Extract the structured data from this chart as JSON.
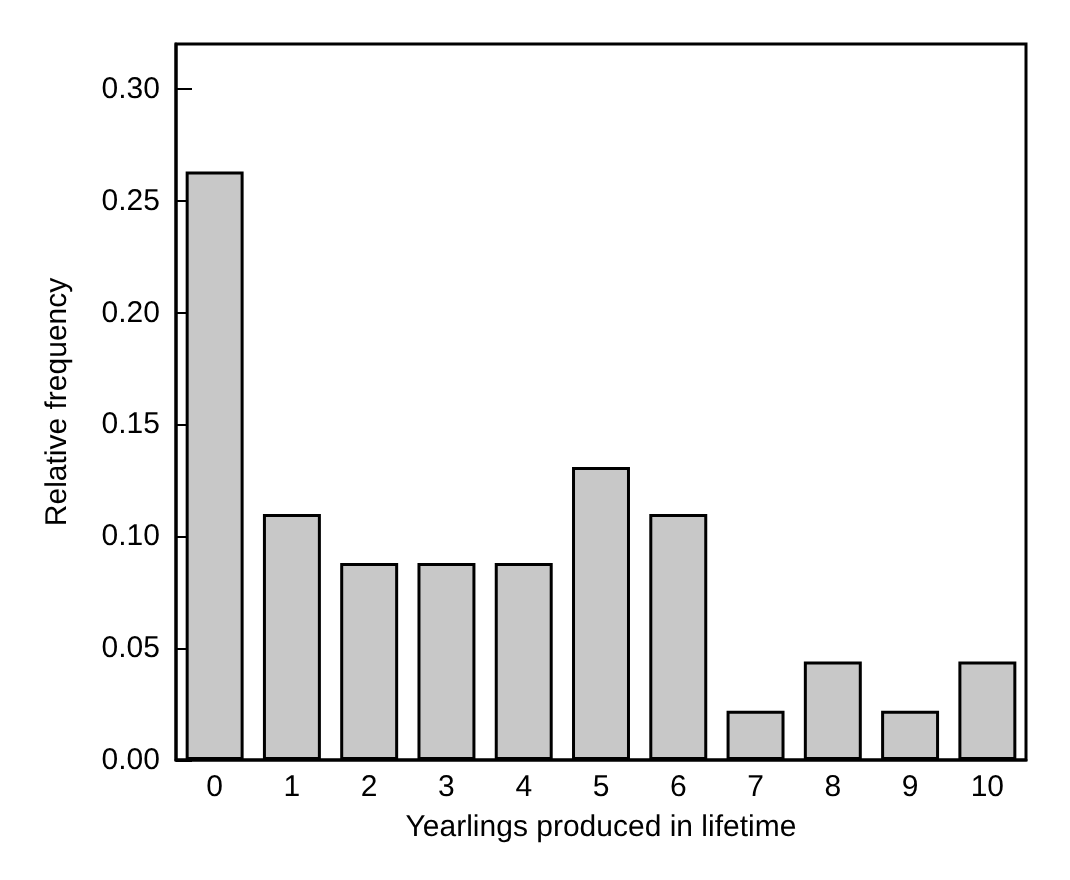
{
  "chart_data": {
    "type": "bar",
    "xlabel": "Yearlings produced in lifetime",
    "ylabel": "Relative frequency",
    "categories": [
      "0",
      "1",
      "2",
      "3",
      "4",
      "5",
      "6",
      "7",
      "8",
      "9",
      "10"
    ],
    "values": [
      0.263,
      0.11,
      0.088,
      0.088,
      0.088,
      0.131,
      0.11,
      0.022,
      0.044,
      0.022,
      0.044
    ],
    "color": "#c8c8c8",
    "ylim": [
      0,
      0.32
    ],
    "yticks": [
      {
        "value": 0,
        "label": "0.00"
      },
      {
        "value": 0.05,
        "label": "0.05"
      },
      {
        "value": 0.1,
        "label": "0.10"
      },
      {
        "value": 0.15,
        "label": "0.15"
      },
      {
        "value": 0.2,
        "label": "0.20"
      },
      {
        "value": 0.25,
        "label": "0.25"
      },
      {
        "value": 0.3,
        "label": "0.30"
      }
    ],
    "grid": false
  }
}
